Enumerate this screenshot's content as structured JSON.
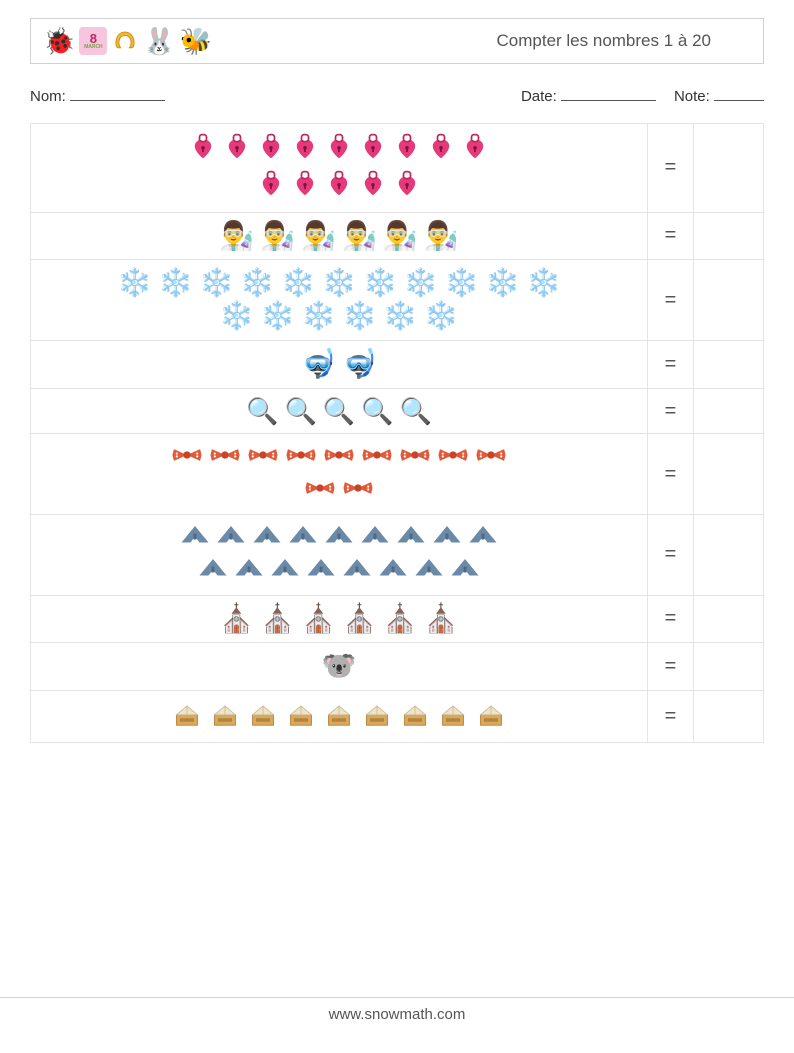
{
  "header": {
    "icons": [
      "🐞",
      "💟",
      "🧲",
      "🐰",
      "🐝"
    ],
    "icon_march_text": "8",
    "icon_march_sub": "MARCH",
    "title": "Compter les nombres 1 à 20"
  },
  "info": {
    "name_label": "Nom:",
    "date_label": "Date:",
    "note_label": "Note:"
  },
  "rows": [
    {
      "glyph": "💗🔒",
      "type": "lockheart",
      "count": 14,
      "per_line": 9,
      "icon_size": 28
    },
    {
      "glyph": "👨‍🔬",
      "type": "text",
      "count": 6,
      "per_line": 10,
      "icon_size": 28
    },
    {
      "glyph": "❄️",
      "type": "text",
      "count": 17,
      "per_line": 11,
      "icon_size": 28,
      "color": "#4a7fb0"
    },
    {
      "glyph": "🤿",
      "type": "text",
      "count": 2,
      "per_line": 10,
      "icon_size": 28
    },
    {
      "glyph": "🔍",
      "type": "text",
      "count": 5,
      "per_line": 10,
      "icon_size": 26
    },
    {
      "glyph": "🎀",
      "type": "bow",
      "count": 11,
      "per_line": 9,
      "icon_size": 28
    },
    {
      "glyph": "✈️",
      "type": "plane",
      "count": 17,
      "per_line": 9,
      "icon_size": 28
    },
    {
      "glyph": "⛪",
      "type": "text",
      "count": 6,
      "per_line": 10,
      "icon_size": 28
    },
    {
      "glyph": "🐨",
      "type": "text",
      "count": 1,
      "per_line": 10,
      "icon_size": 28
    },
    {
      "glyph": "📖",
      "type": "lectern",
      "count": 9,
      "per_line": 10,
      "icon_size": 28
    }
  ],
  "equals": "=",
  "footer": "www.snowmath.com",
  "colors": {
    "border": "#e4e4e4",
    "header_border": "#d0d0d0",
    "text": "#333333",
    "pink": "#e6397b",
    "red_orange": "#e15a3a",
    "steel_blue": "#6a8aa8",
    "snow_blue": "#4a7fb0",
    "wood": "#d9a85d",
    "book": "#f0e4c8"
  }
}
